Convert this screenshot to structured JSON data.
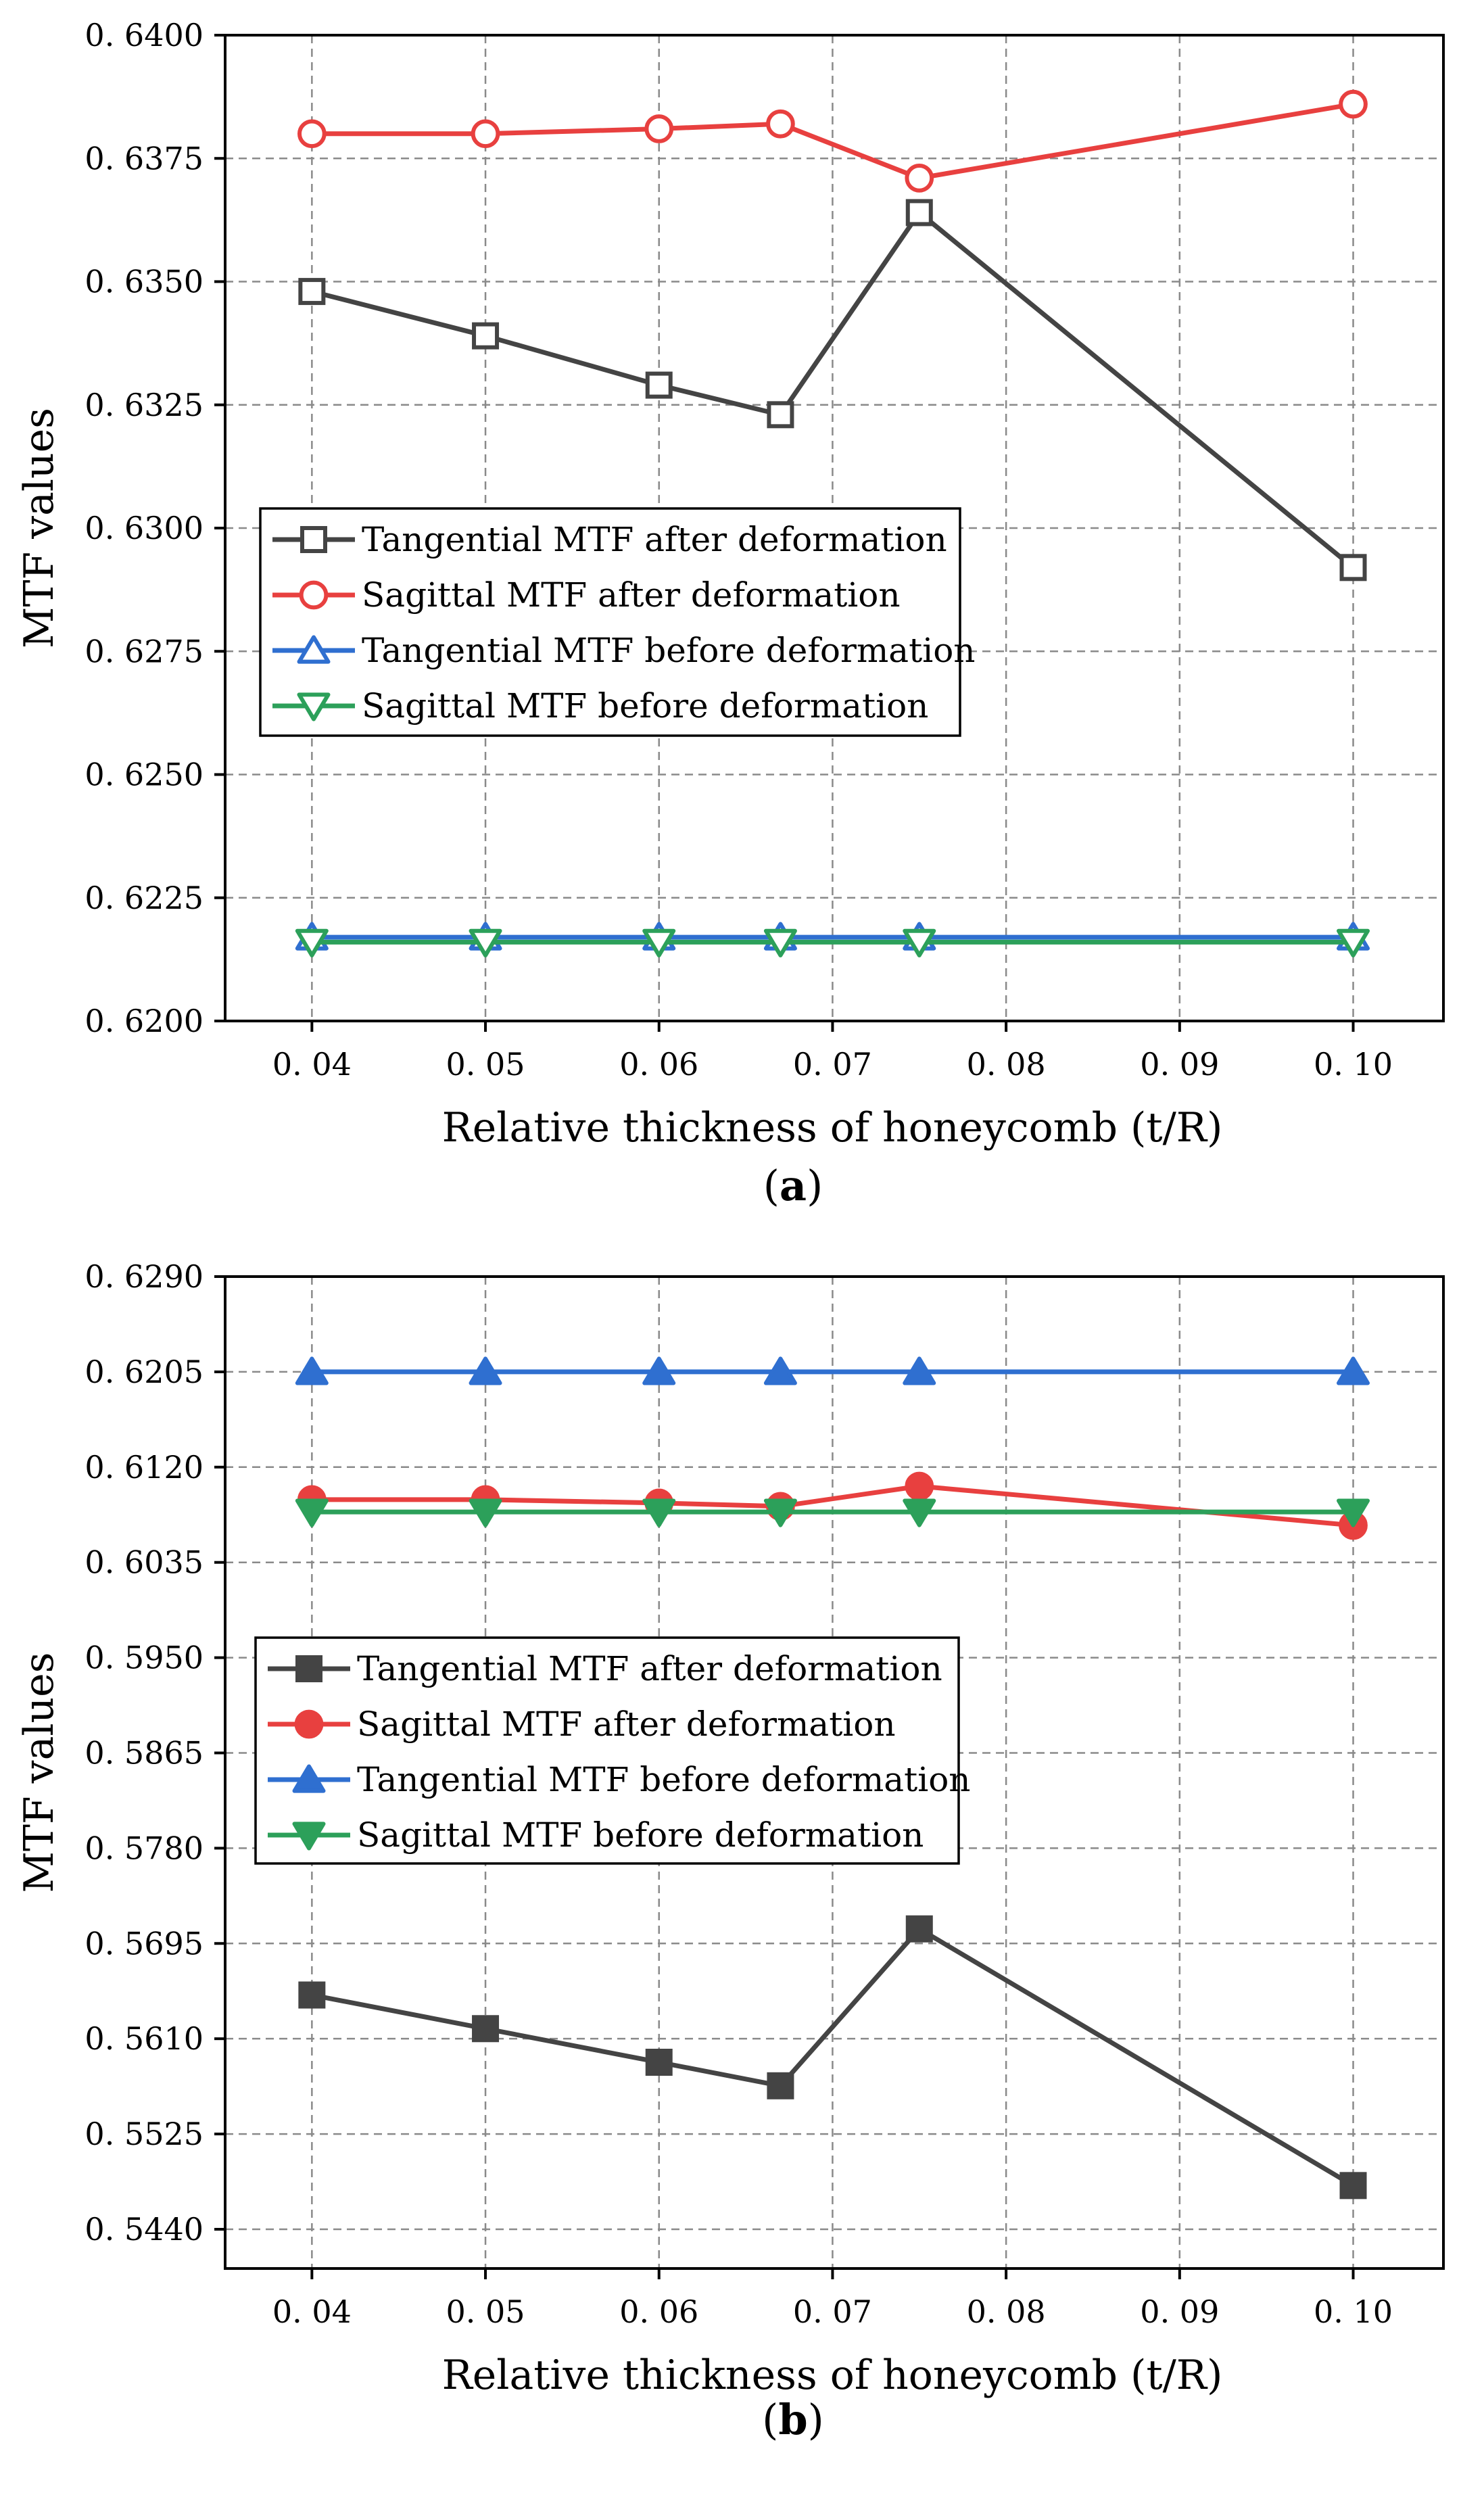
{
  "chart_data": [
    {
      "panel": "a",
      "type": "line",
      "caption_open": "(",
      "caption_label": "a",
      "caption_close": ")",
      "xlabel": "Relative thickness of honeycomb (t/R)",
      "ylabel": "MTF values",
      "xlim": [
        0.035,
        0.1052
      ],
      "ylim": [
        0.62,
        0.64
      ],
      "x_ticks": [
        "0. 04",
        "0. 05",
        "0. 06",
        "0. 07",
        "0. 08",
        "0. 09",
        "0. 10"
      ],
      "x_tick_values": [
        0.04,
        0.05,
        0.06,
        0.07,
        0.08,
        0.09,
        0.1
      ],
      "y_ticks": [
        "0. 6200",
        "0. 6225",
        "0. 6250",
        "0. 6275",
        "0. 6300",
        "0. 6325",
        "0. 6350",
        "0. 6375",
        "0. 6400"
      ],
      "y_tick_values": [
        0.62,
        0.6225,
        0.625,
        0.6275,
        0.63,
        0.6325,
        0.635,
        0.6375,
        0.64
      ],
      "grid": true,
      "legend_position": "center-left",
      "x": [
        0.04,
        0.05,
        0.06,
        0.067,
        0.075,
        0.1
      ],
      "series": [
        {
          "name": "Tangential MTF after deformation",
          "color": "#444444",
          "marker": "square",
          "filled": false,
          "values": [
            0.6348,
            0.6339,
            0.6329,
            0.6323,
            0.6364,
            0.6292
          ]
        },
        {
          "name": "Sagittal MTF after deformation",
          "color": "#e8403f",
          "marker": "circle",
          "filled": false,
          "values": [
            0.638,
            0.638,
            0.6381,
            0.6382,
            0.6371,
            0.6386
          ]
        },
        {
          "name": "Tangential MTF before deformation",
          "color": "#2f6fd0",
          "marker": "triangle-up",
          "filled": false,
          "values": [
            0.6217,
            0.6217,
            0.6217,
            0.6217,
            0.6217,
            0.6217
          ]
        },
        {
          "name": "Sagittal MTF before deformation",
          "color": "#2ca05a",
          "marker": "triangle-down",
          "filled": false,
          "values": [
            0.6216,
            0.6216,
            0.6216,
            0.6216,
            0.6216,
            0.6216
          ]
        }
      ]
    },
    {
      "panel": "b",
      "type": "line",
      "caption_open": "(",
      "caption_label": "b",
      "caption_close": ")",
      "xlabel": "Relative thickness of honeycomb (t/R)",
      "ylabel": "MTF values",
      "xlim": [
        0.035,
        0.1052
      ],
      "ylim": [
        0.5405,
        0.629
      ],
      "x_ticks": [
        "0. 04",
        "0. 05",
        "0. 06",
        "0. 07",
        "0. 08",
        "0. 09",
        "0. 10"
      ],
      "x_tick_values": [
        0.04,
        0.05,
        0.06,
        0.07,
        0.08,
        0.09,
        0.1
      ],
      "y_ticks": [
        "0. 5440",
        "0. 5525",
        "0. 5610",
        "0. 5695",
        "0. 5780",
        "0. 5865",
        "0. 5950",
        "0. 6035",
        "0. 6120",
        "0. 6205",
        "0. 6290"
      ],
      "y_tick_values": [
        0.544,
        0.5525,
        0.561,
        0.5695,
        0.578,
        0.5865,
        0.595,
        0.6035,
        0.612,
        0.6205,
        0.629
      ],
      "grid": true,
      "legend_position": "center-left",
      "x": [
        0.04,
        0.05,
        0.06,
        0.067,
        0.075,
        0.1
      ],
      "series": [
        {
          "name": "Tangential MTF after deformation",
          "color": "#444444",
          "marker": "square",
          "filled": true,
          "values": [
            0.5649,
            0.5619,
            0.5589,
            0.5568,
            0.5708,
            0.5479
          ]
        },
        {
          "name": "Sagittal MTF after deformation",
          "color": "#e8403f",
          "marker": "circle",
          "filled": true,
          "values": [
            0.6091,
            0.6091,
            0.6088,
            0.6085,
            0.6103,
            0.6068
          ]
        },
        {
          "name": "Tangential MTF before deformation",
          "color": "#2f6fd0",
          "marker": "triangle-up",
          "filled": true,
          "values": [
            0.6205,
            0.6205,
            0.6205,
            0.6205,
            0.6205,
            0.6205
          ]
        },
        {
          "name": "Sagittal MTF before deformation",
          "color": "#2ca05a",
          "marker": "triangle-down",
          "filled": true,
          "values": [
            0.608,
            0.608,
            0.608,
            0.608,
            0.608,
            0.608
          ]
        }
      ]
    }
  ]
}
